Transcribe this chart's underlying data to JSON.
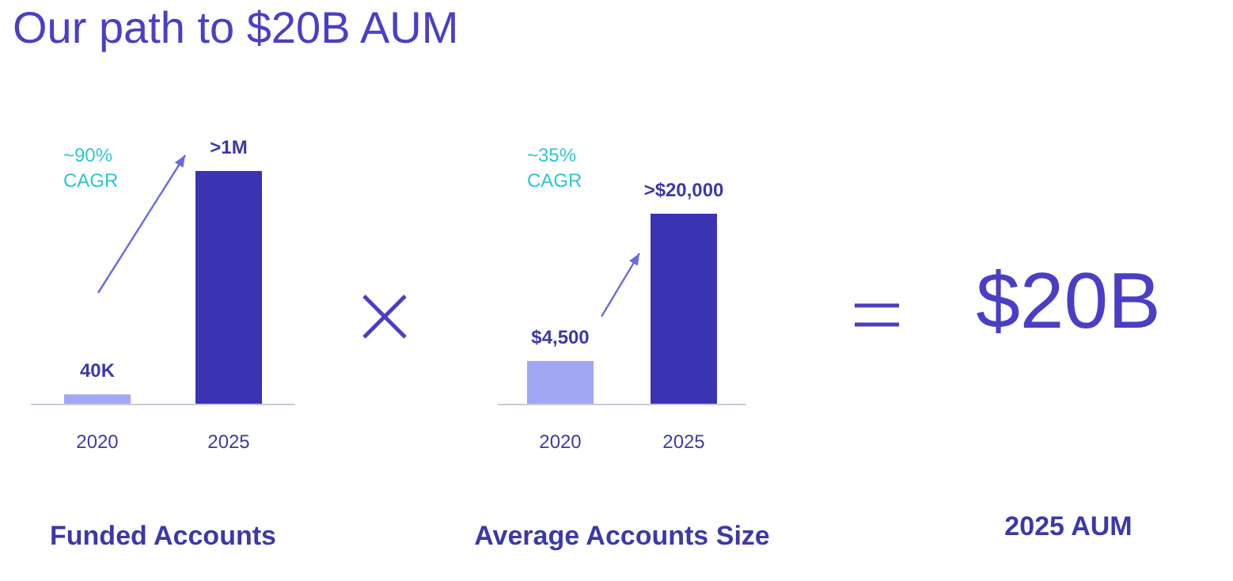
{
  "chart_data": [
    {
      "type": "bar",
      "title": "Our path to $20B AUM",
      "xlabel": "Funded Accounts",
      "categories": [
        "2020",
        "2025"
      ],
      "tick_labels": "x",
      "values": [
        40000,
        1000000
      ],
      "value_labels": [
        "40K",
        ">1M"
      ],
      "colors": [
        "#a3a6f3",
        "#3a34b4"
      ],
      "annotations": [
        "~90% CAGR"
      ]
    },
    {
      "type": "bar",
      "xlabel": "Average Accounts Size",
      "categories": [
        "2020",
        "2025"
      ],
      "tick_labels": "x",
      "values": [
        4500,
        20000
      ],
      "value_labels": [
        "$4,500",
        ">$20,000"
      ],
      "colors": [
        "#a3a6f3",
        "#3a34b4"
      ],
      "annotations": [
        "~35% CAGR"
      ]
    },
    {
      "type": "other",
      "title": "$20B",
      "xlabel": "2025 AUM"
    }
  ]
}
